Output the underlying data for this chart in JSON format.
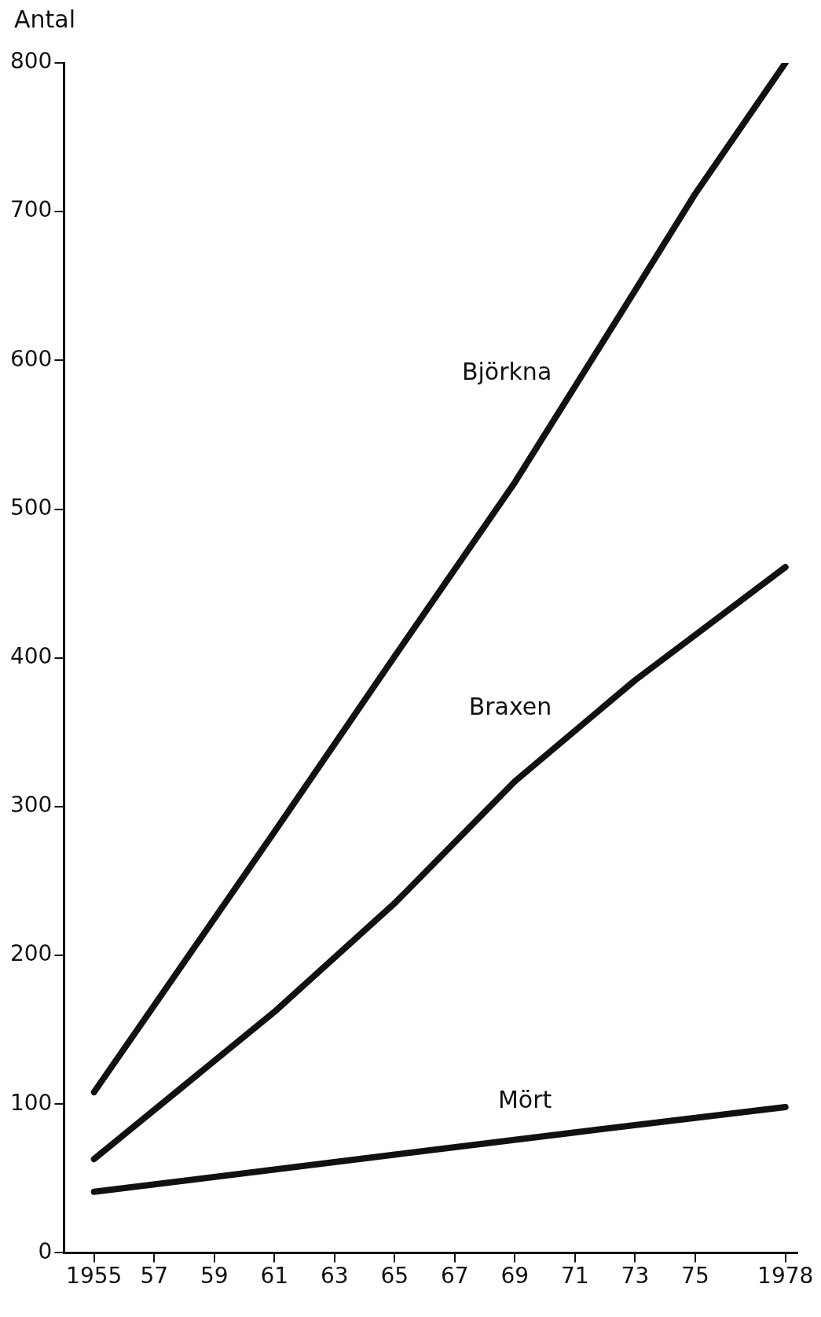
{
  "chart_data": {
    "type": "line",
    "ylabel": "Antal",
    "xlim": [
      1954,
      1978.4
    ],
    "ylim": [
      0,
      800
    ],
    "xticks": [
      1955,
      {
        "value": 1957,
        "label": "57"
      },
      {
        "value": 1959,
        "label": "59"
      },
      {
        "value": 1961,
        "label": "61"
      },
      {
        "value": 1963,
        "label": "63"
      },
      {
        "value": 1965,
        "label": "65"
      },
      {
        "value": 1967,
        "label": "67"
      },
      {
        "value": 1969,
        "label": "69"
      },
      {
        "value": 1971,
        "label": "71"
      },
      {
        "value": 1973,
        "label": "73"
      },
      {
        "value": 1975,
        "label": "75"
      },
      1978
    ],
    "yticks": [
      0,
      100,
      200,
      300,
      400,
      500,
      600,
      700,
      800
    ],
    "grid": false,
    "legend": false,
    "marker": "none",
    "line_style": "solid",
    "series": [
      {
        "name": "Björkna",
        "color": "#111111",
        "x": [
          1955,
          1961,
          1965,
          1969,
          1973,
          1975,
          1978
        ],
        "values": [
          108,
          283,
          401,
          518,
          647,
          712,
          800
        ]
      },
      {
        "name": "Braxen",
        "color": "#111111",
        "x": [
          1955,
          1961,
          1965,
          1969,
          1973,
          1978
        ],
        "values": [
          63,
          162,
          235,
          317,
          385,
          461
        ]
      },
      {
        "name": "Mört",
        "color": "#111111",
        "x": [
          1955,
          1965,
          1971,
          1978
        ],
        "values": [
          41,
          66,
          81,
          98
        ]
      }
    ]
  }
}
